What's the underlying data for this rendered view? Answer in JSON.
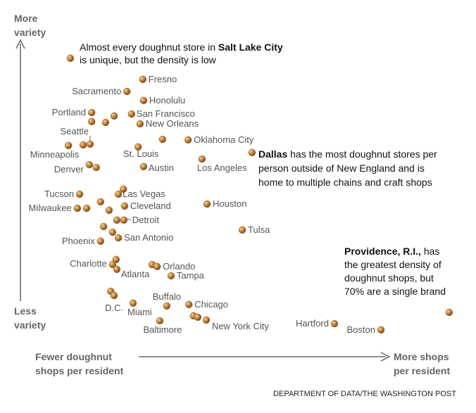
{
  "chart_data": {
    "type": "scatter",
    "y_label_top": [
      "More",
      "variety"
    ],
    "y_label_bottom": [
      "Less",
      "variety"
    ],
    "x_label_left": [
      "Fewer doughnut",
      "shops per resident"
    ],
    "x_label_right": [
      "More shops",
      "per resident"
    ],
    "source": "DEPARTMENT OF DATA/THE WASHINGTON POST",
    "xlim": [
      0,
      100
    ],
    "ylim": [
      0,
      100
    ],
    "color": "#b5762f",
    "points": [
      {
        "label": null,
        "x": 1.8,
        "y": 99.3
      },
      {
        "label": "Fresno",
        "x": 20.5,
        "y": 91.8
      },
      {
        "label": "Sacramento",
        "x": 16.4,
        "y": 87.5
      },
      {
        "label": "Honolulu",
        "x": 20.7,
        "y": 84.3
      },
      {
        "label": "Portland",
        "x": 7.3,
        "y": 80
      },
      {
        "label": null,
        "x": 13.1,
        "y": 78.8
      },
      {
        "label": null,
        "x": 10.9,
        "y": 76.5
      },
      {
        "label": "San Francisco",
        "x": 17.6,
        "y": 79.5
      },
      {
        "label": null,
        "x": 7.3,
        "y": 76.8
      },
      {
        "label": "New Orleans",
        "x": 19.8,
        "y": 76
      },
      {
        "label": null,
        "x": 25.6,
        "y": 70.5
      },
      {
        "label": "Oklahoma City",
        "x": 32.2,
        "y": 70.3
      },
      {
        "label": null,
        "x": 48.7,
        "y": 65.8
      },
      {
        "label": "Minneapolis",
        "x": 1.3,
        "y": 68.3
      },
      {
        "label": "Seattle",
        "x": 6.9,
        "y": 68.8
      },
      {
        "label": null,
        "x": 5.1,
        "y": 68.5
      },
      {
        "label": "St. Louis",
        "x": 19.3,
        "y": 67.8
      },
      {
        "label": "Los Angeles",
        "x": 35.8,
        "y": 63.5
      },
      {
        "label": "Denver",
        "x": 6.7,
        "y": 61.5
      },
      {
        "label": null,
        "x": 8.5,
        "y": 60.5
      },
      {
        "label": "Austin",
        "x": 20.7,
        "y": 60.8
      },
      {
        "label": null,
        "x": 15.5,
        "y": 52.8
      },
      {
        "label": "Las Vegas",
        "x": 14.2,
        "y": 51
      },
      {
        "label": "Tucson",
        "x": 4.2,
        "y": 51
      },
      {
        "label": "Milwaukee",
        "x": 3.6,
        "y": 46
      },
      {
        "label": null,
        "x": 6,
        "y": 46
      },
      {
        "label": null,
        "x": 9.6,
        "y": 48.3
      },
      {
        "label": null,
        "x": 11.8,
        "y": 45.3
      },
      {
        "label": "Cleveland",
        "x": 15.8,
        "y": 46.8
      },
      {
        "label": "Houston",
        "x": 37.1,
        "y": 47.5
      },
      {
        "label": null,
        "x": 13.8,
        "y": 41.8
      },
      {
        "label": "Detroit",
        "x": 15.6,
        "y": 41.8
      },
      {
        "label": null,
        "x": 10.4,
        "y": 39.5
      },
      {
        "label": null,
        "x": 12.7,
        "y": 37.5
      },
      {
        "label": "San Antonio",
        "x": 14.2,
        "y": 35.5
      },
      {
        "label": "Tulsa",
        "x": 46.2,
        "y": 38.3
      },
      {
        "label": "Phoenix",
        "x": 9.6,
        "y": 34.3
      },
      {
        "label": null,
        "x": 13.6,
        "y": 27.8
      },
      {
        "label": "Charlotte",
        "x": 12.7,
        "y": 26
      },
      {
        "label": "Atlanta",
        "x": 13.8,
        "y": 24.3
      },
      {
        "label": null,
        "x": 22.9,
        "y": 26
      },
      {
        "label": "Orlando",
        "x": 24.2,
        "y": 25.3
      },
      {
        "label": "Tampa",
        "x": 27.8,
        "y": 22
      },
      {
        "label": null,
        "x": 99.6,
        "y": 9
      },
      {
        "label": null,
        "x": 12.2,
        "y": 16.5
      },
      {
        "label": "D.C.",
        "x": 13.1,
        "y": 15
      },
      {
        "label": "Miami",
        "x": 18,
        "y": 12.3
      },
      {
        "label": "Buffalo",
        "x": 26.7,
        "y": 11.3
      },
      {
        "label": "Chicago",
        "x": 32.4,
        "y": 11.8
      },
      {
        "label": "Baltimore",
        "x": 24.9,
        "y": 6
      },
      {
        "label": null,
        "x": 33.6,
        "y": 7.8
      },
      {
        "label": null,
        "x": 34.7,
        "y": 7.3
      },
      {
        "label": "New York City",
        "x": 36.9,
        "y": 6.3
      },
      {
        "label": "Hartford",
        "x": 70,
        "y": 5
      },
      {
        "label": "Boston",
        "x": 82,
        "y": 2.8
      }
    ],
    "annotations": [
      {
        "lines": [
          [
            {
              "text": "Almost every doughnut store in ",
              "bold": false
            },
            {
              "text": "Salt Lake City",
              "bold": true
            }
          ],
          [
            {
              "text": "is unique, but the density is low",
              "bold": false
            }
          ]
        ]
      },
      {
        "lines": [
          [
            {
              "text": "Dallas",
              "bold": true
            },
            {
              "text": " has the most doughnut stores per",
              "bold": false
            }
          ],
          [
            {
              "text": "person outside of New England and is",
              "bold": false
            }
          ],
          [
            {
              "text": "home to multiple chains and craft shops",
              "bold": false
            }
          ]
        ]
      },
      {
        "lines": [
          [
            {
              "text": "Providence, R.I.,",
              "bold": true
            },
            {
              "text": " has",
              "bold": false
            }
          ],
          [
            {
              "text": "the greatest density of",
              "bold": false
            }
          ],
          [
            {
              "text": "doughnut shops, but",
              "bold": false
            }
          ],
          [
            {
              "text": "70% are a single brand",
              "bold": false
            }
          ]
        ]
      }
    ]
  }
}
